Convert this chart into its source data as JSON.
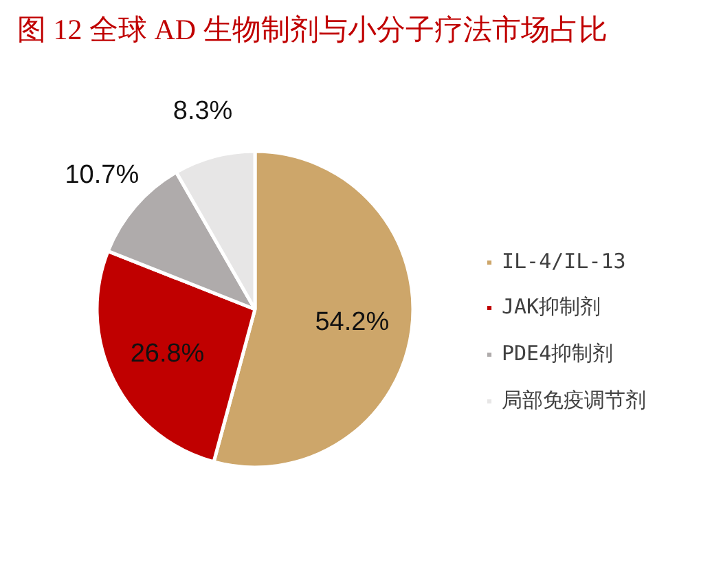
{
  "chart_data": {
    "type": "pie",
    "title": "图 12 全球 AD 生物制剂与小分子疗法市场占比",
    "categories": [
      "IL-4/IL-13",
      "JAK抑制剂",
      "PDE4抑制剂",
      "局部免疫调节剂"
    ],
    "values": [
      54.2,
      26.8,
      10.7,
      8.3
    ],
    "colors": [
      "#cda66a",
      "#c00000",
      "#afabab",
      "#e7e6e6"
    ],
    "value_labels": [
      "54.2%",
      "26.8%",
      "10.7%",
      "8.3%"
    ],
    "legend": "right"
  }
}
